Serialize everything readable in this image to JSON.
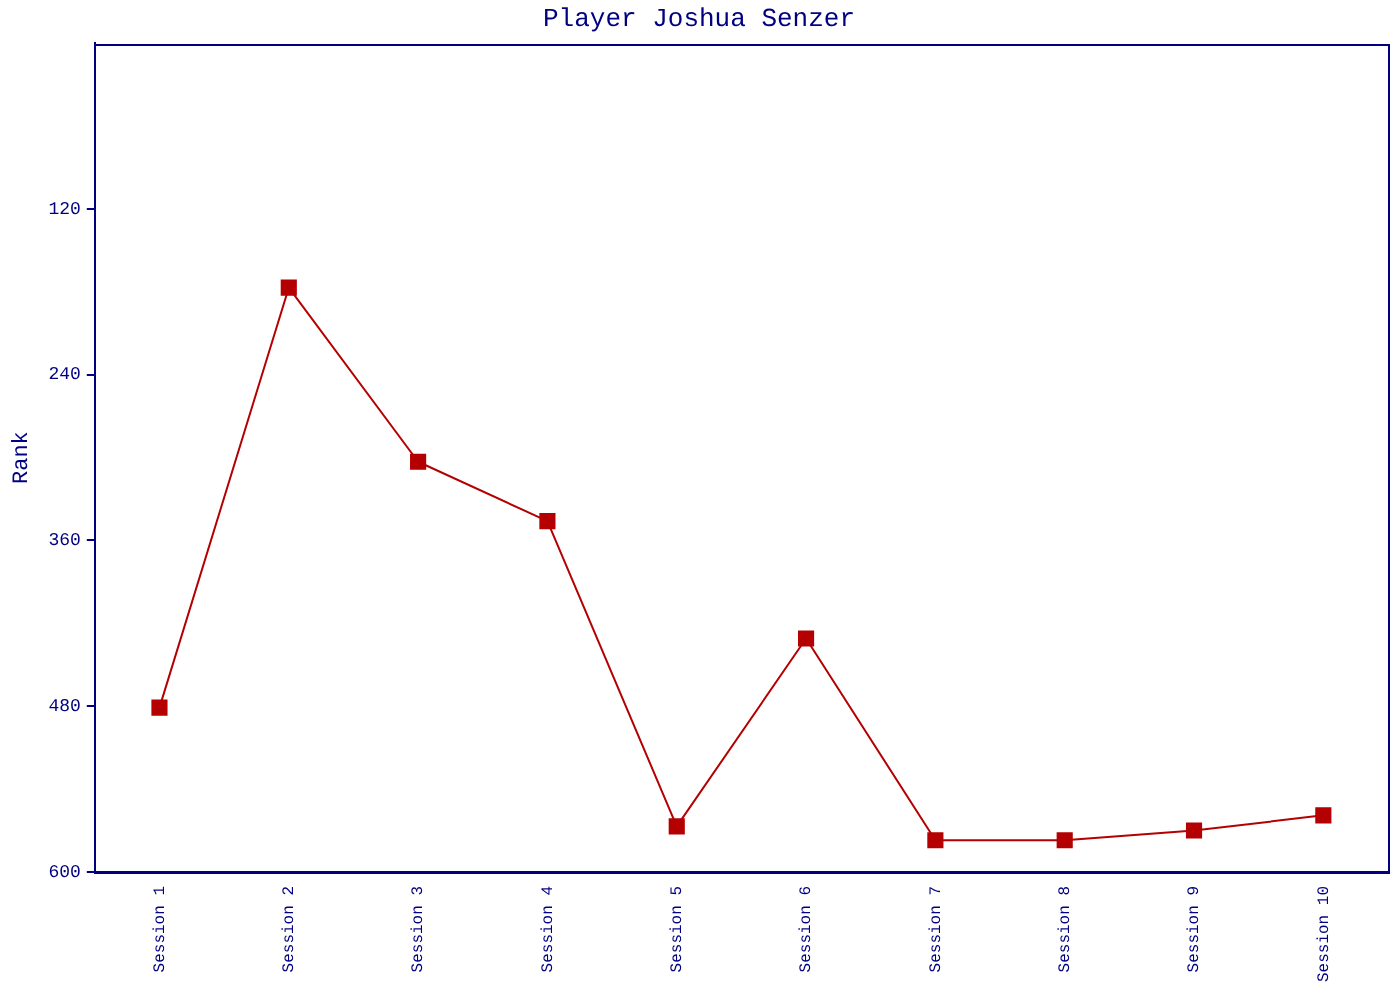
{
  "chart_data": {
    "type": "line",
    "title": "Player Joshua Senzer",
    "ylabel": "Rank",
    "categories": [
      "Session 1",
      "Session 2",
      "Session 3",
      "Session 4",
      "Session 5",
      "Session 6",
      "Session 7",
      "Session 8",
      "Session 9",
      "Session 10"
    ],
    "series": [
      {
        "color": "#b40000",
        "values": [
          481,
          177,
          303,
          346,
          567,
          431,
          577,
          577,
          570,
          559
        ]
      }
    ],
    "ylim": [
      600,
      0
    ],
    "yticks": [
      120,
      240,
      360,
      480,
      600
    ],
    "grid": false,
    "legend": false,
    "marker": "square",
    "line_style": "solid"
  }
}
